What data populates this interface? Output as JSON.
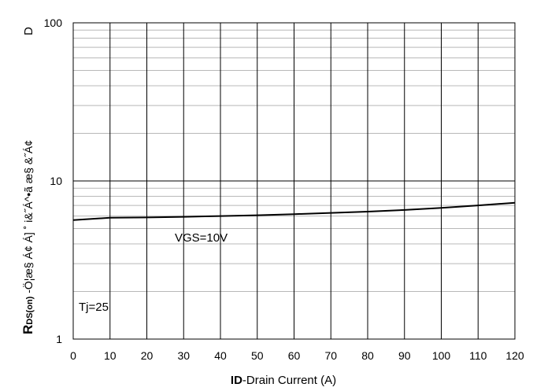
{
  "chart_data": {
    "type": "line",
    "y_scale": "log",
    "xlim": [
      0,
      120
    ],
    "ylim": [
      1,
      100
    ],
    "grid": true,
    "x_ticks": [
      "0",
      "10",
      "20",
      "30",
      "40",
      "50",
      "60",
      "70",
      "80",
      "90",
      "100",
      "110",
      "120"
    ],
    "y_ticks": [
      "1",
      "10",
      "100"
    ],
    "xlabel_bold": "ID",
    "xlabel_rest": "-Drain Current  (A)",
    "ylabel_bold": "R",
    "ylabel_sub": "DS(on)",
    "ylabel_rest": " -Ö¦æ§ Á¢ Á]  ˚ i&˝Á^•ã æ§ &˝Á¢",
    "ylabel_end": "D",
    "annotations": {
      "series_label": "VGS=10V",
      "condition": "Tj=25"
    },
    "series": [
      {
        "color": "#000000",
        "x": [
          0,
          10,
          20,
          30,
          40,
          50,
          60,
          70,
          80,
          90,
          100,
          110,
          120
        ],
        "y": [
          5.65,
          5.85,
          5.88,
          5.93,
          6.0,
          6.07,
          6.17,
          6.28,
          6.4,
          6.55,
          6.75,
          7.0,
          7.28
        ]
      }
    ]
  }
}
